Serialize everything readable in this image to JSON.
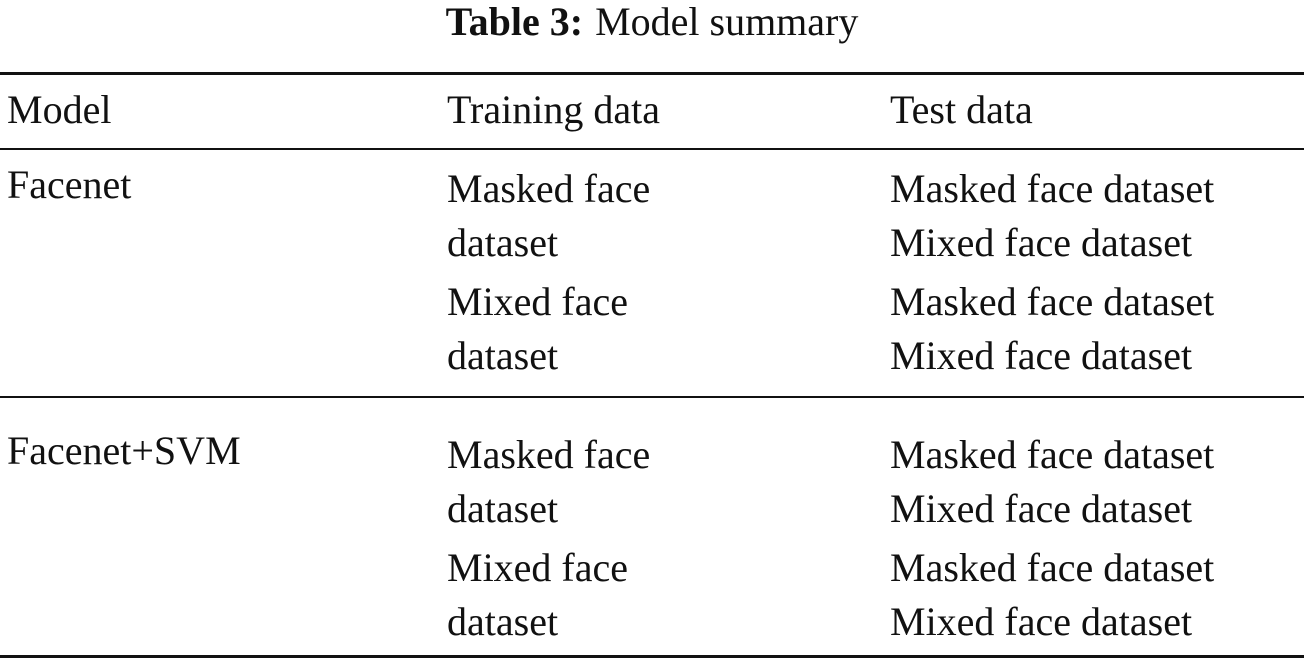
{
  "caption": {
    "label": "Table 3:",
    "text": "Model summary"
  },
  "table": {
    "header": [
      "Model",
      "Training data",
      "Test data"
    ],
    "rows": [
      {
        "model": "Facenet",
        "groups": [
          {
            "training": "Masked face dataset",
            "test": [
              "Masked face dataset",
              "Mixed face dataset"
            ]
          },
          {
            "training": "Mixed face dataset",
            "test": [
              "Masked face dataset",
              "Mixed face dataset"
            ]
          }
        ]
      },
      {
        "model": "Facenet+SVM",
        "groups": [
          {
            "training": "Masked face dataset",
            "test": [
              "Masked face dataset",
              "Mixed face dataset"
            ]
          },
          {
            "training": "Mixed face dataset",
            "test": [
              "Masked face dataset",
              "Mixed face dataset"
            ]
          }
        ]
      }
    ]
  }
}
